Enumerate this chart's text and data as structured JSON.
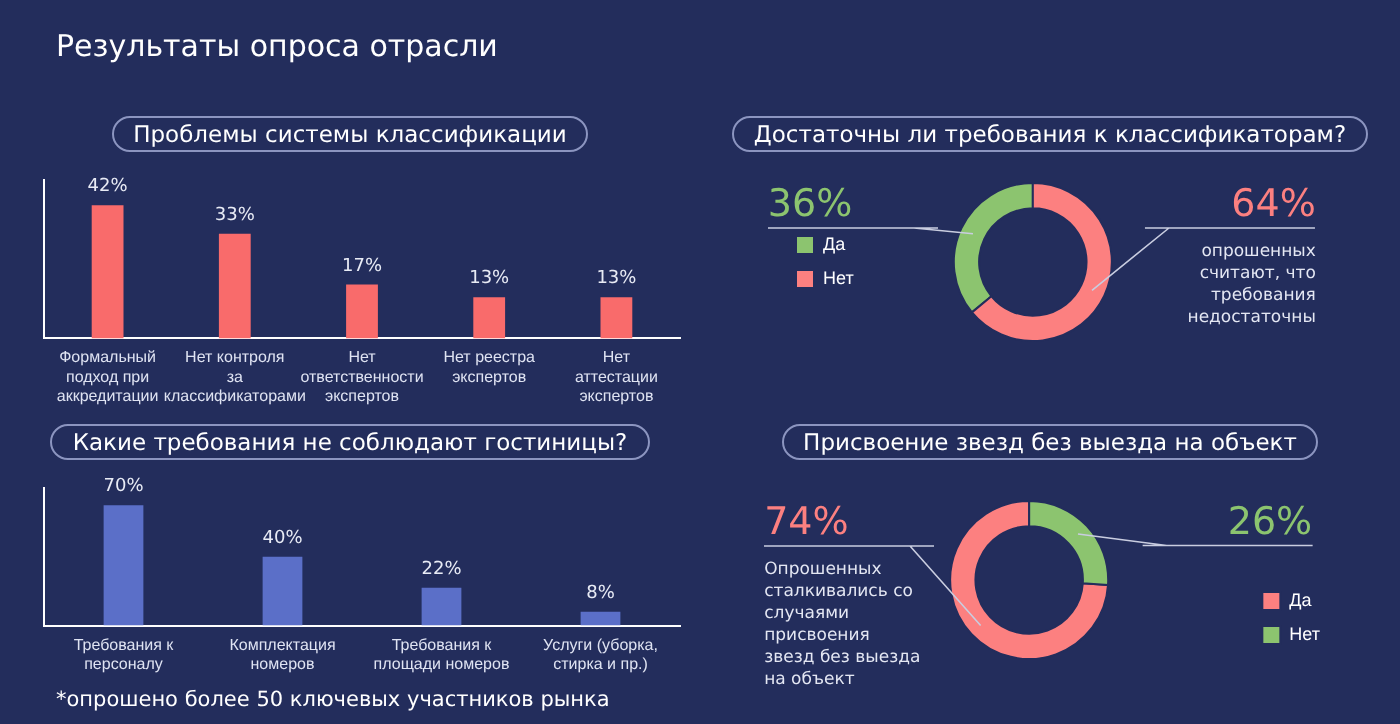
{
  "chart_data": [
    {
      "type": "bar",
      "title": "Проблемы системы классификации",
      "categories": [
        "Формальный подход при аккредитации",
        "Нет контроля за классификаторами",
        "Нет ответственности экспертов",
        "Нет реестра экспертов",
        "Нет аттестации экспертов"
      ],
      "values": [
        42,
        33,
        17,
        13,
        13
      ],
      "value_labels": [
        "42%",
        "33%",
        "17%",
        "13%",
        "13%"
      ],
      "color": "#f96b6b",
      "tick_labels": "x",
      "annotations": [
        "Результаты опроса отрасли"
      ]
    },
    {
      "type": "donut",
      "title": "Достаточны ли требования к классификаторам?",
      "categories": [
        "Да",
        "Нет"
      ],
      "values": [
        36,
        64
      ],
      "value_labels": [
        "36%",
        "64%"
      ],
      "colors": [
        "#8cc46f",
        "#fc8080"
      ],
      "legend": "left",
      "annotations": [
        "опрошенных считают, что требования недостаточны"
      ]
    },
    {
      "type": "bar",
      "title": "Какие требования не соблюдают гостиницы?",
      "categories": [
        "Требования к персоналу",
        "Комплектация номеров",
        "Требования к площади номеров",
        "Услуги (уборка, стирка и пр.)"
      ],
      "values": [
        70,
        40,
        22,
        8
      ],
      "value_labels": [
        "70%",
        "40%",
        "22%",
        "8%"
      ],
      "color": "#5b6fc8",
      "tick_labels": "x",
      "annotations": [
        "*опрошено более 50 ключевых участников рынка"
      ]
    },
    {
      "type": "donut",
      "title": "Присвоение звезд без выезда на объект",
      "categories": [
        "Да",
        "Нет"
      ],
      "values": [
        74,
        26
      ],
      "value_labels": [
        "74%",
        "26%"
      ],
      "colors": [
        "#fc8080",
        "#8cc46f"
      ],
      "legend": "bottom right",
      "annotations": [
        "Опрошенных сталкивались со случаями присвоения звезд без выезда на объект"
      ]
    }
  ]
}
